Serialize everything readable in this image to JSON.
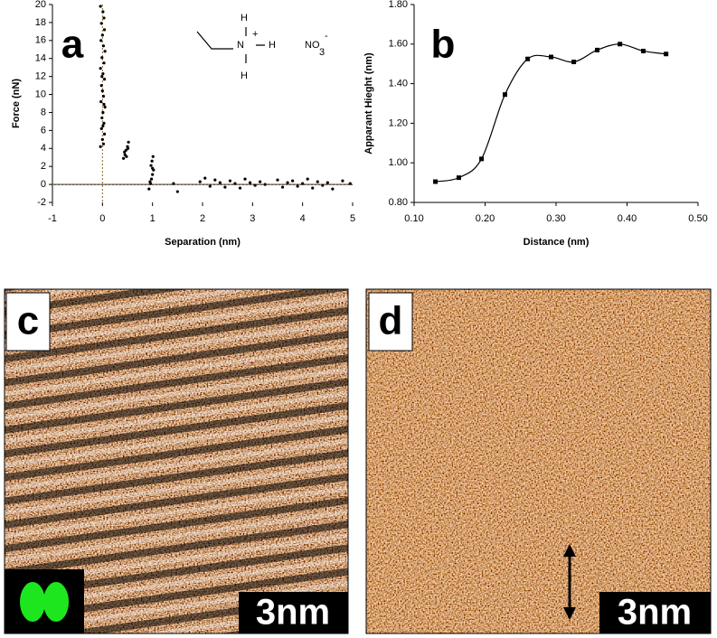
{
  "chart_data": [
    {
      "type": "scatter",
      "label": "a",
      "annotations": [
        "H",
        "N",
        "+",
        "H",
        "H",
        "NO",
        "3",
        "-"
      ],
      "x_label": "Separation (nm)",
      "y_label": "Force (nN)",
      "x": [
        -0.04,
        0.01,
        0.03,
        -0.02,
        0.04,
        0,
        -0.03,
        0.02,
        0.05,
        -0.01,
        0.03,
        -0.04,
        0.01,
        0.04,
        -0.02,
        0,
        0.02,
        -0.03,
        0.05,
        0.01,
        -0.01,
        0.03,
        -0.02,
        0.04,
        0,
        0.02,
        -0.04,
        0.01,
        0.03,
        -0.01,
        0.42,
        0.45,
        0.47,
        0.5,
        0.52,
        0.48,
        0.44,
        0.51,
        0.93,
        0.96,
        0.98,
        1.0,
        1.02,
        0.97,
        0.99,
        1.01,
        0.95,
        1.0,
        1.42,
        1.5,
        1.95,
        2.05,
        2.15,
        2.25,
        2.35,
        2.45,
        2.55,
        2.65,
        2.75,
        2.85,
        2.95,
        3.05,
        3.15,
        3.25,
        3.5,
        3.6,
        3.7,
        3.8,
        3.9,
        4.0,
        4.1,
        4.2,
        4.3,
        4.4,
        4.5,
        4.6,
        4.8,
        4.95
      ],
      "values": [
        19.8,
        19.2,
        18.5,
        17.9,
        17.2,
        16.6,
        16.0,
        15.4,
        14.8,
        14.1,
        13.5,
        12.9,
        12.3,
        11.7,
        11.0,
        10.4,
        9.8,
        9.2,
        8.6,
        8.0,
        7.4,
        6.8,
        6.2,
        5.6,
        5.0,
        4.5,
        4.2,
        6.5,
        8.9,
        12.0,
        2.9,
        3.3,
        3.8,
        4.2,
        4.7,
        3.1,
        3.6,
        4.0,
        -0.5,
        0.1,
        0.6,
        1.1,
        1.6,
        2.1,
        2.6,
        3.1,
        0.3,
        1.8,
        0.1,
        -0.8,
        0.3,
        0.7,
        -0.2,
        0.5,
        0.2,
        -0.3,
        0.4,
        0.1,
        -0.4,
        0.6,
        0.2,
        -0.1,
        0.3,
        0.0,
        0.5,
        -0.3,
        0.2,
        0.4,
        -0.2,
        0.1,
        0.6,
        -0.4,
        0.3,
        -0.1,
        0.2,
        -0.5,
        0.4,
        0.1
      ],
      "color": "#000000",
      "xlim": [
        -1,
        5
      ],
      "xticks": [
        -1,
        0,
        1,
        2,
        3,
        4,
        5
      ],
      "ylim": [
        -2,
        20
      ],
      "yticks": [
        -2,
        0,
        2,
        4,
        6,
        8,
        10,
        12,
        14,
        16,
        18,
        20
      ]
    },
    {
      "type": "line",
      "label": "b",
      "x_label": "Distance (nm)",
      "y_label": "Apparant Hieght (nm)",
      "x": [
        0.13,
        0.163,
        0.195,
        0.228,
        0.26,
        0.293,
        0.325,
        0.358,
        0.39,
        0.423,
        0.455
      ],
      "values": [
        0.905,
        0.925,
        1.02,
        1.345,
        1.525,
        1.535,
        1.51,
        1.57,
        1.6,
        1.565,
        1.55
      ],
      "color": "#000000",
      "xlim": [
        0.1,
        0.5
      ],
      "xticks": [
        {
          "value": 0.1,
          "label": "0.10"
        },
        {
          "value": 0.2,
          "label": "0.20"
        },
        {
          "value": 0.3,
          "label": "0.30"
        },
        {
          "value": 0.4,
          "label": "0.40"
        },
        {
          "value": 0.5,
          "label": "0.50"
        }
      ],
      "ylim": [
        0.8,
        1.8
      ],
      "yticks": [
        {
          "value": 0.8,
          "label": "0.80"
        },
        {
          "value": 1.0,
          "label": "1.00"
        },
        {
          "value": 1.2,
          "label": "1.20"
        },
        {
          "value": 1.4,
          "label": "1.40"
        },
        {
          "value": 1.6,
          "label": "1.60"
        },
        {
          "value": 1.8,
          "label": "1.80"
        }
      ]
    }
  ],
  "images": [
    {
      "label": "c",
      "scale": "3nm"
    },
    {
      "label": "d",
      "scale": "3nm"
    }
  ]
}
